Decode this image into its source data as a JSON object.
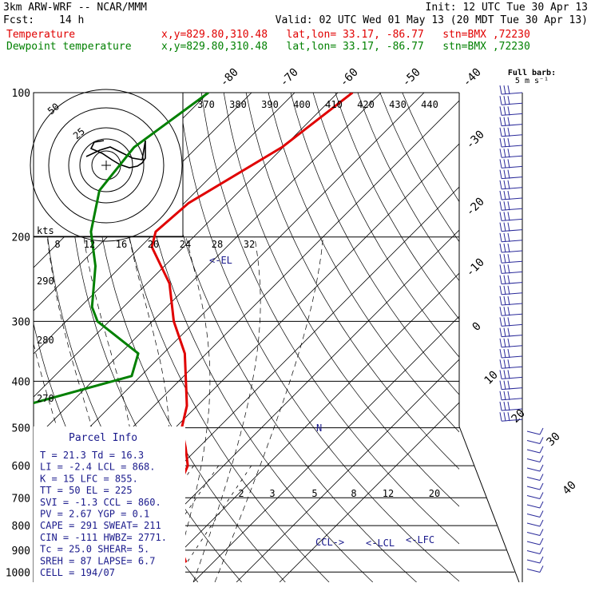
{
  "header": {
    "model": "3km ARW-WRF -- NCAR/MMM",
    "init": "Init: 12 UTC Tue 30 Apr 13",
    "fcst_label": "Fcst:",
    "fcst_value": "14 h",
    "valid": "Valid: 02 UTC Wed 01 May 13 (20 MDT Tue 30 Apr 13)",
    "temp_label": "Temperature",
    "dew_label": "Dewpoint temperature",
    "point_info": "x,y=829.80,310.48   lat,lon= 33.17, -86.77   stn=BMX ,72230"
  },
  "colors": {
    "temperature": "#e00000",
    "dewpoint": "#008000",
    "panel_text": "#1a1a8c",
    "axes": "#000000"
  },
  "chart_data": {
    "type": "line",
    "pressure_levels": [
      100,
      200,
      300,
      400,
      500,
      600,
      700,
      800,
      900,
      1000
    ],
    "isotherm_labels": [
      "-80",
      "-70",
      "-60",
      "-50",
      "-40",
      "-30",
      "-20",
      "-10",
      "0",
      "10",
      "20",
      "30",
      "40"
    ],
    "theta_labels": [
      "370",
      "380",
      "390",
      "400",
      "410",
      "420",
      "430",
      "440"
    ],
    "hodo_speed_labels": [
      "8",
      "12",
      "16",
      "20",
      "24",
      "28",
      "32"
    ],
    "hodo_ring_labels": [
      "50",
      "25"
    ],
    "hodo_units": "kts",
    "left_edge_labels": [
      "290",
      "280",
      "270"
    ],
    "mixing_ratio_labels": [
      "2",
      "3",
      "5",
      "8",
      "12",
      "20"
    ],
    "annotations": [
      "<-EL",
      "CCL->",
      "<-LCL",
      "<-LFC",
      "N"
    ],
    "barb_legend": [
      "Full barb:",
      "5 m s⁻¹"
    ],
    "series": [
      {
        "name": "Temperature",
        "points": [
          [
            100,
            -46.6
          ],
          [
            130,
            -50.3
          ],
          [
            170,
            -59
          ],
          [
            195,
            -60
          ],
          [
            210,
            -57.3
          ],
          [
            250,
            -44.8
          ],
          [
            300,
            -35
          ],
          [
            350,
            -25
          ],
          [
            400,
            -18.3
          ],
          [
            450,
            -12.4
          ],
          [
            500,
            -8.5
          ],
          [
            550,
            -3
          ],
          [
            600,
            1.7
          ],
          [
            650,
            3.9
          ],
          [
            700,
            5.9
          ],
          [
            750,
            8.1
          ],
          [
            800,
            11.9
          ],
          [
            850,
            16.2
          ],
          [
            900,
            19.8
          ],
          [
            950,
            23.4
          ],
          [
            970,
            21.6
          ],
          [
            1000,
            21.3
          ]
        ]
      },
      {
        "name": "Dewpoint temperature",
        "points": [
          [
            100,
            -80
          ],
          [
            130,
            -84.6
          ],
          [
            160,
            -82.6
          ],
          [
            195,
            -75
          ],
          [
            230,
            -66
          ],
          [
            280,
            -57.3
          ],
          [
            300,
            -52.7
          ],
          [
            350,
            -35.8
          ],
          [
            390,
            -32.1
          ],
          [
            450,
            -50.3
          ],
          [
            480,
            -63.6
          ],
          [
            500,
            -49.8
          ],
          [
            550,
            -35
          ],
          [
            570,
            -50
          ],
          [
            600,
            -67.4
          ],
          [
            650,
            -56.3
          ],
          [
            700,
            -44.1
          ],
          [
            750,
            -19.4
          ],
          [
            800,
            -7.1
          ],
          [
            850,
            -0.1
          ],
          [
            900,
            4.8
          ],
          [
            950,
            10.4
          ],
          [
            1000,
            16.3
          ]
        ]
      }
    ]
  },
  "parcel_info": {
    "title": "Parcel Info",
    "rows": [
      "T   =   21.3  Td  =  16.3",
      "LI  =   -2.4  LCL =   868.",
      "K   =     15  LFC =   855.",
      "TT  =     50  EL  =   225",
      "SVI =   -1.3  CCL =   860.",
      "PV  =   2.67  YGP =    0.1",
      "CAPE =   291  SWEAT=   211",
      "CIN  =  -111  HWBZ= 2771.",
      "Tc  =   25.0  SHEAR=    5.",
      "SREH =    87  LAPSE=   6.7",
      "CELL = 194/07"
    ]
  }
}
